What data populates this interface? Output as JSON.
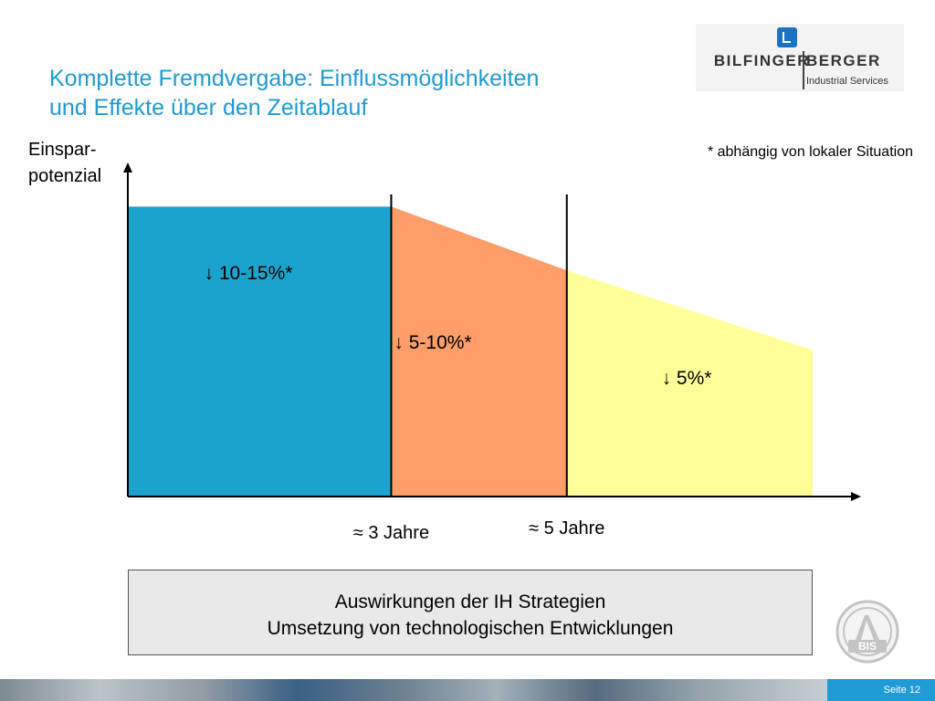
{
  "title": {
    "line1": "Komplette Fremdvergabe: Einflussmöglichkeiten",
    "line2": "und Effekte über den Zeitablauf"
  },
  "logo": {
    "brand_left": "BILFINGER",
    "brand_right": "BERGER",
    "subtitle": "Industrial Services"
  },
  "chart_data": {
    "type": "area",
    "title": "Komplette Fremdvergabe: Einflussmöglichkeiten und Effekte über den Zeitablauf",
    "ylabel": "Einspar- potenzial",
    "ylabel_lines": [
      "Einspar-",
      "potenzial"
    ],
    "xlabel": "",
    "note": "* abhängig von lokaler Situation",
    "x_markers": [
      {
        "label": "≈ 3 Jahre",
        "position": 3
      },
      {
        "label": "≈ 5 Jahre",
        "position": 5
      }
    ],
    "xlim": [
      0,
      7.8
    ],
    "ylim": [
      0,
      1.0
    ],
    "grid": false,
    "legend": "none",
    "segments": [
      {
        "label": "↓ 10-15%*",
        "x_start": 0,
        "x_end": 3,
        "y_start": 0.91,
        "y_end": 0.91,
        "color": "#1aa3cc"
      },
      {
        "label": "↓ 5-10%*",
        "x_start": 3,
        "x_end": 5,
        "y_start": 0.91,
        "y_end": 0.71,
        "color": "#fd9d68"
      },
      {
        "label": "↓ 5%*",
        "x_start": 5,
        "x_end": 7.8,
        "y_start": 0.71,
        "y_end": 0.46,
        "color": "#ffff99"
      }
    ]
  },
  "box": {
    "line1": "Auswirkungen der IH Strategien",
    "line2": "Umsetzung von technologischen Entwicklungen"
  },
  "seal": {
    "text": "BIS"
  },
  "footer": {
    "page": "Seite 12"
  }
}
